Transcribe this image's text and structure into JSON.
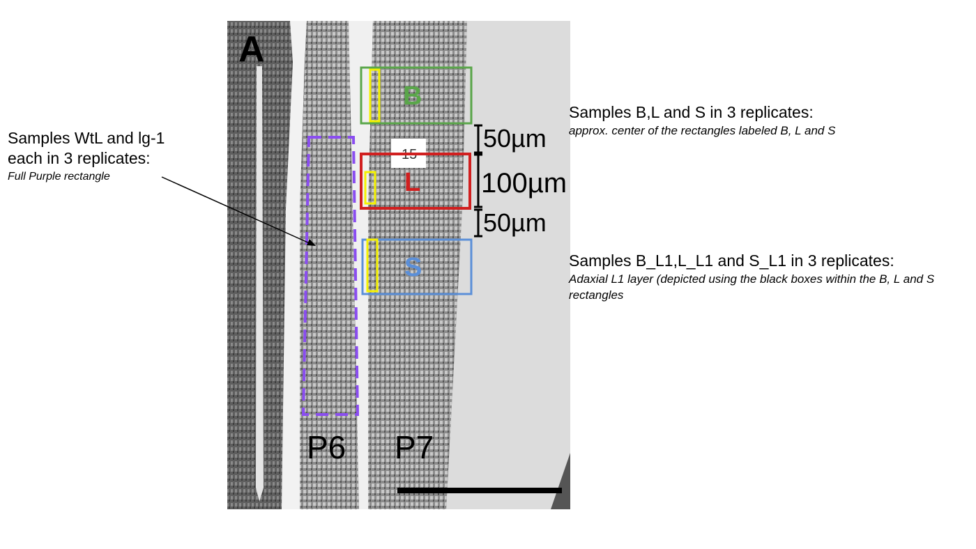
{
  "panel": {
    "letter": "A",
    "primordia": [
      "P6",
      "P7"
    ],
    "label_box": "15",
    "regions": [
      {
        "label": "B",
        "color": "#5aa64a"
      },
      {
        "label": "L",
        "color": "#d11f1f"
      },
      {
        "label": "S",
        "color": "#5b8fd8"
      }
    ],
    "wt_region_color": "#8a4df0",
    "l1_box_color": "#f5f200",
    "distances": [
      "50µm",
      "100µm",
      "50µm"
    ]
  },
  "notes": {
    "left": {
      "line1": "Samples WtL and lg-1",
      "line2": "each in 3 replicates:",
      "sub": "Full Purple rectangle"
    },
    "bls": {
      "head": "Samples B,L and S in 3 replicates:",
      "sub": "approx. center of the rectangles labeled B, L and S"
    },
    "l1": {
      "head": "Samples B_L1,L_L1 and S_L1 in 3 replicates:",
      "sub": "Adaxial L1 layer (depicted using the black boxes within the B, L and S rectangles"
    }
  }
}
